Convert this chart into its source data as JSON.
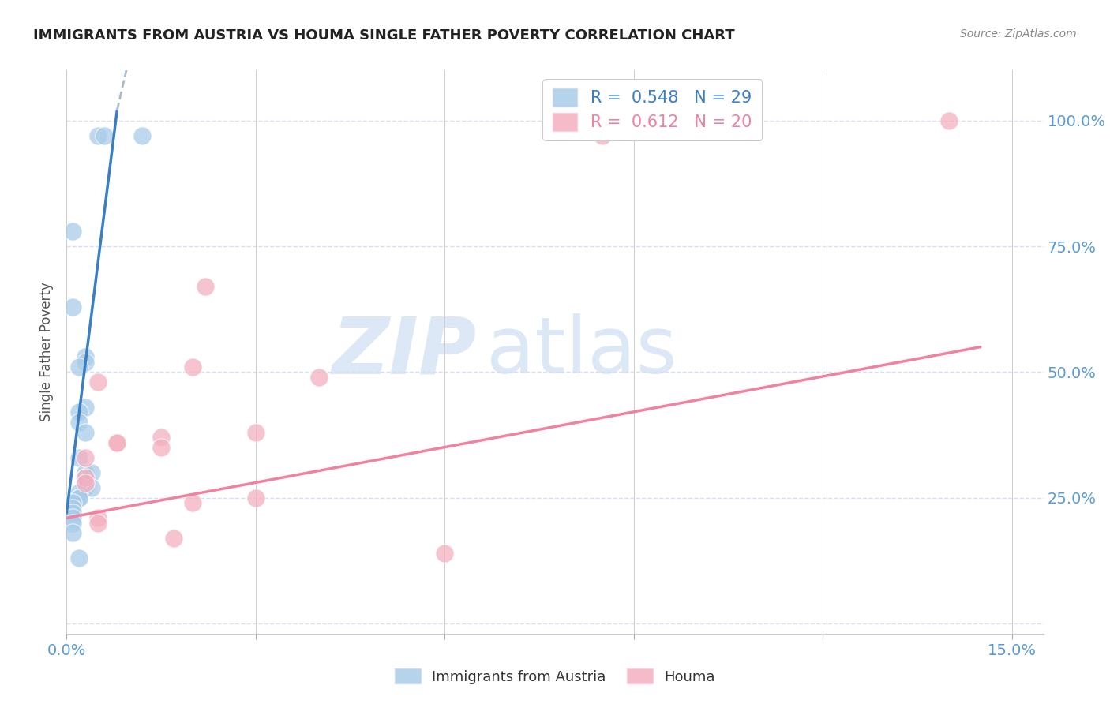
{
  "title": "IMMIGRANTS FROM AUSTRIA VS HOUMA SINGLE FATHER POVERTY CORRELATION CHART",
  "source": "Source: ZipAtlas.com",
  "ylabel": "Single Father Poverty",
  "legend": [
    {
      "label": "Immigrants from Austria",
      "R": "0.548",
      "N": "29",
      "color": "#a8cce8"
    },
    {
      "label": "Houma",
      "R": "0.612",
      "N": "20",
      "color": "#f4b0c0"
    }
  ],
  "blue_scatter": [
    [
      0.005,
      0.97
    ],
    [
      0.006,
      0.97
    ],
    [
      0.012,
      0.97
    ],
    [
      0.001,
      0.78
    ],
    [
      0.001,
      0.63
    ],
    [
      0.003,
      0.53
    ],
    [
      0.003,
      0.52
    ],
    [
      0.002,
      0.51
    ],
    [
      0.003,
      0.43
    ],
    [
      0.002,
      0.42
    ],
    [
      0.002,
      0.4
    ],
    [
      0.003,
      0.38
    ],
    [
      0.002,
      0.33
    ],
    [
      0.003,
      0.3
    ],
    [
      0.003,
      0.29
    ],
    [
      0.003,
      0.28
    ],
    [
      0.004,
      0.3
    ],
    [
      0.003,
      0.27
    ],
    [
      0.004,
      0.27
    ],
    [
      0.002,
      0.26
    ],
    [
      0.002,
      0.25
    ],
    [
      0.002,
      0.25
    ],
    [
      0.001,
      0.24
    ],
    [
      0.001,
      0.23
    ],
    [
      0.001,
      0.22
    ],
    [
      0.001,
      0.21
    ],
    [
      0.001,
      0.2
    ],
    [
      0.001,
      0.18
    ],
    [
      0.002,
      0.13
    ]
  ],
  "pink_scatter": [
    [
      0.085,
      0.97
    ],
    [
      0.14,
      1.0
    ],
    [
      0.022,
      0.67
    ],
    [
      0.02,
      0.51
    ],
    [
      0.04,
      0.49
    ],
    [
      0.005,
      0.48
    ],
    [
      0.003,
      0.33
    ],
    [
      0.008,
      0.36
    ],
    [
      0.008,
      0.36
    ],
    [
      0.015,
      0.37
    ],
    [
      0.015,
      0.35
    ],
    [
      0.03,
      0.38
    ],
    [
      0.02,
      0.24
    ],
    [
      0.03,
      0.25
    ],
    [
      0.003,
      0.29
    ],
    [
      0.003,
      0.28
    ],
    [
      0.005,
      0.21
    ],
    [
      0.005,
      0.2
    ],
    [
      0.017,
      0.17
    ],
    [
      0.06,
      0.14
    ]
  ],
  "blue_line_solid": [
    [
      0.0,
      0.22
    ],
    [
      0.008,
      1.02
    ]
  ],
  "blue_line_dashed": [
    [
      0.008,
      1.02
    ],
    [
      0.015,
      1.4
    ]
  ],
  "pink_line": [
    [
      0.0,
      0.21
    ],
    [
      0.145,
      0.55
    ]
  ],
  "xlim": [
    0.0,
    0.155
  ],
  "ylim": [
    -0.02,
    1.1
  ],
  "xticks": [
    0.0,
    0.03,
    0.06,
    0.09,
    0.12,
    0.15
  ],
  "xticklabels": [
    "0.0%",
    "",
    "",
    "",
    "",
    "15.0%"
  ],
  "yticks": [
    0.0,
    0.25,
    0.5,
    0.75,
    1.0
  ],
  "yticklabels_right": [
    "",
    "25.0%",
    "50.0%",
    "75.0%",
    "100.0%"
  ],
  "blue_color": "#a8cce8",
  "pink_color": "#f4b0c0",
  "blue_line_color": "#3a7fc1",
  "pink_line_color": "#f082a0",
  "title_color": "#222222",
  "source_color": "#888888",
  "axis_label_color": "#5b9bd5",
  "grid_color": "#d8dff0",
  "watermark_color": "#dce8f5",
  "watermark_text": "ZIPatlas"
}
